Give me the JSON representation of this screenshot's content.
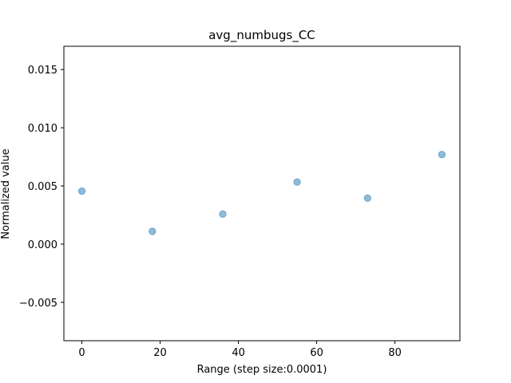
{
  "chart_data": {
    "type": "scatter",
    "title": "avg_numbugs_CC",
    "xlabel": "Range (step size:0.0001)",
    "ylabel": "Normalized value",
    "xlim": [
      -4.6,
      96.6
    ],
    "ylim": [
      -0.0083,
      0.017
    ],
    "xticks": [
      0,
      20,
      40,
      60,
      80
    ],
    "xtick_labels": [
      "0",
      "20",
      "40",
      "60",
      "80"
    ],
    "yticks": [
      -0.005,
      0.0,
      0.005,
      0.01,
      0.015
    ],
    "ytick_labels": [
      "−0.005",
      "0.000",
      "0.005",
      "0.010",
      "0.015"
    ],
    "grid": false,
    "series": [
      {
        "color": "#1f77b4",
        "alpha": 0.5,
        "points": [
          {
            "x": 0,
            "y": 0.00455
          },
          {
            "x": 18,
            "y": 0.0011
          },
          {
            "x": 36,
            "y": 0.00258
          },
          {
            "x": 55,
            "y": 0.00533
          },
          {
            "x": 73,
            "y": 0.00395
          },
          {
            "x": 92,
            "y": 0.0077
          }
        ]
      }
    ]
  }
}
